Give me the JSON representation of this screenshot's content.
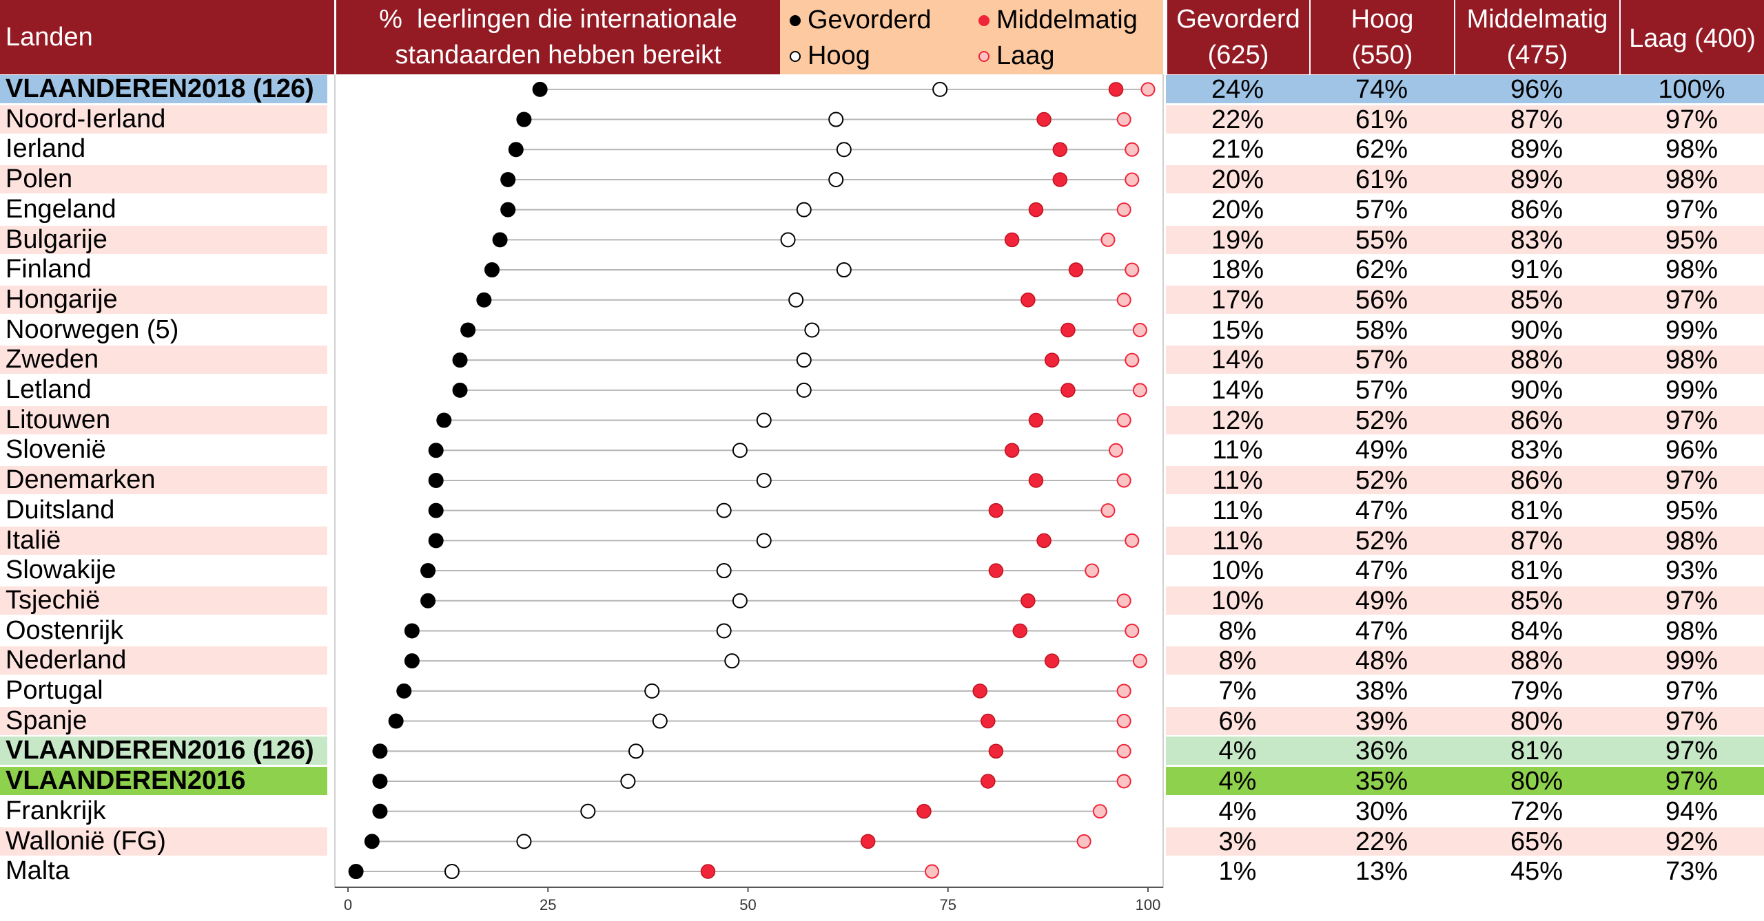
{
  "header": {
    "landen": "Landen",
    "title_line1": "%  leerlingen die internationale",
    "title_line2": "standaarden hebben bereikt"
  },
  "legend": {
    "gevorderd": "Gevorderd",
    "middelmatig": "Middelmatig",
    "hoog": "Hoog",
    "laag": "Laag"
  },
  "table_header": [
    {
      "name": "Gevorderd",
      "sub": "(625)"
    },
    {
      "name": "Hoog",
      "sub": "(550)"
    },
    {
      "name": "Middelmatig",
      "sub": "(475)"
    },
    {
      "name": "Laag (400)",
      "sub": ""
    }
  ],
  "colors": {
    "header_bg": "#941a24",
    "legend_bg": "#fdc9a1",
    "row_pink": "#fde2de",
    "row_blue": "#9fc4e6",
    "row_lightgreen": "#c6e8c6",
    "row_green": "#8ed14d",
    "gevorderd": "#000000",
    "hoog": "#ffffff",
    "middelmatig": "#f0253a",
    "laag": "#fbc3c3"
  },
  "rows": [
    {
      "land": "VLAANDEREN2018 (126)",
      "bold": true,
      "bg": "#9fc4e6",
      "g": "24%",
      "h": "74%",
      "m": "96%",
      "l": "100%"
    },
    {
      "land": "Noord-Ierland",
      "bold": false,
      "bg": "#fde2de",
      "g": "22%",
      "h": "61%",
      "m": "87%",
      "l": "97%"
    },
    {
      "land": "Ierland",
      "bold": false,
      "bg": "#ffffff",
      "g": "21%",
      "h": "62%",
      "m": "89%",
      "l": "98%"
    },
    {
      "land": "Polen",
      "bold": false,
      "bg": "#fde2de",
      "g": "20%",
      "h": "61%",
      "m": "89%",
      "l": "98%"
    },
    {
      "land": "Engeland",
      "bold": false,
      "bg": "#ffffff",
      "g": "20%",
      "h": "57%",
      "m": "86%",
      "l": "97%"
    },
    {
      "land": "Bulgarije",
      "bold": false,
      "bg": "#fde2de",
      "g": "19%",
      "h": "55%",
      "m": "83%",
      "l": "95%"
    },
    {
      "land": "Finland",
      "bold": false,
      "bg": "#ffffff",
      "g": "18%",
      "h": "62%",
      "m": "91%",
      "l": "98%"
    },
    {
      "land": "Hongarije",
      "bold": false,
      "bg": "#fde2de",
      "g": "17%",
      "h": "56%",
      "m": "85%",
      "l": "97%"
    },
    {
      "land": "Noorwegen (5)",
      "bold": false,
      "bg": "#ffffff",
      "g": "15%",
      "h": "58%",
      "m": "90%",
      "l": "99%"
    },
    {
      "land": "Zweden",
      "bold": false,
      "bg": "#fde2de",
      "g": "14%",
      "h": "57%",
      "m": "88%",
      "l": "98%"
    },
    {
      "land": "Letland",
      "bold": false,
      "bg": "#ffffff",
      "g": "14%",
      "h": "57%",
      "m": "90%",
      "l": "99%"
    },
    {
      "land": "Litouwen",
      "bold": false,
      "bg": "#fde2de",
      "g": "12%",
      "h": "52%",
      "m": "86%",
      "l": "97%"
    },
    {
      "land": "Slovenië",
      "bold": false,
      "bg": "#ffffff",
      "g": "11%",
      "h": "49%",
      "m": "83%",
      "l": "96%"
    },
    {
      "land": "Denemarken",
      "bold": false,
      "bg": "#fde2de",
      "g": "11%",
      "h": "52%",
      "m": "86%",
      "l": "97%"
    },
    {
      "land": "Duitsland",
      "bold": false,
      "bg": "#ffffff",
      "g": "11%",
      "h": "47%",
      "m": "81%",
      "l": "95%"
    },
    {
      "land": "Italië",
      "bold": false,
      "bg": "#fde2de",
      "g": "11%",
      "h": "52%",
      "m": "87%",
      "l": "98%"
    },
    {
      "land": "Slowakije",
      "bold": false,
      "bg": "#ffffff",
      "g": "10%",
      "h": "47%",
      "m": "81%",
      "l": "93%"
    },
    {
      "land": "Tsjechië",
      "bold": false,
      "bg": "#fde2de",
      "g": "10%",
      "h": "49%",
      "m": "85%",
      "l": "97%"
    },
    {
      "land": "Oostenrijk",
      "bold": false,
      "bg": "#ffffff",
      "g": "8%",
      "h": "47%",
      "m": "84%",
      "l": "98%"
    },
    {
      "land": "Nederland",
      "bold": false,
      "bg": "#fde2de",
      "g": "8%",
      "h": "48%",
      "m": "88%",
      "l": "99%"
    },
    {
      "land": "Portugal",
      "bold": false,
      "bg": "#ffffff",
      "g": "7%",
      "h": "38%",
      "m": "79%",
      "l": "97%"
    },
    {
      "land": "Spanje",
      "bold": false,
      "bg": "#fde2de",
      "g": "6%",
      "h": "39%",
      "m": "80%",
      "l": "97%"
    },
    {
      "land": "VLAANDEREN2016 (126)",
      "bold": true,
      "bg": "#c6e8c6",
      "g": "4%",
      "h": "36%",
      "m": "81%",
      "l": "97%"
    },
    {
      "land": "VLAANDEREN2016",
      "bold": true,
      "bg": "#8ed14d",
      "g": "4%",
      "h": "35%",
      "m": "80%",
      "l": "97%"
    },
    {
      "land": "Frankrijk",
      "bold": false,
      "bg": "#ffffff",
      "g": "4%",
      "h": "30%",
      "m": "72%",
      "l": "94%"
    },
    {
      "land": "Wallonië (FG)",
      "bold": false,
      "bg": "#fde2de",
      "g": "3%",
      "h": "22%",
      "m": "65%",
      "l": "92%"
    },
    {
      "land": "Malta",
      "bold": false,
      "bg": "#ffffff",
      "g": "1%",
      "h": "13%",
      "m": "45%",
      "l": "73%"
    }
  ],
  "chart_data": {
    "type": "scatter",
    "title": "%  leerlingen die internationale standaarden hebben bereikt",
    "xlim": [
      0,
      100
    ],
    "xticks": [
      0,
      25,
      50,
      75,
      100
    ],
    "categories": [
      "VLAANDEREN2018 (126)",
      "Noord-Ierland",
      "Ierland",
      "Polen",
      "Engeland",
      "Bulgarije",
      "Finland",
      "Hongarije",
      "Noorwegen (5)",
      "Zweden",
      "Letland",
      "Litouwen",
      "Slovenië",
      "Denemarken",
      "Duitsland",
      "Italië",
      "Slowakije",
      "Tsjechië",
      "Oostenrijk",
      "Nederland",
      "Portugal",
      "Spanje",
      "VLAANDEREN2016 (126)",
      "VLAANDEREN2016",
      "Frankrijk",
      "Wallonië (FG)",
      "Malta"
    ],
    "series": [
      {
        "name": "Gevorderd",
        "values": [
          24,
          22,
          21,
          20,
          20,
          19,
          18,
          17,
          15,
          14,
          14,
          12,
          11,
          11,
          11,
          11,
          10,
          10,
          8,
          8,
          7,
          6,
          4,
          4,
          4,
          3,
          1
        ]
      },
      {
        "name": "Hoog",
        "values": [
          74,
          61,
          62,
          61,
          57,
          55,
          62,
          56,
          58,
          57,
          57,
          52,
          49,
          52,
          47,
          52,
          47,
          49,
          47,
          48,
          38,
          39,
          36,
          35,
          30,
          22,
          13
        ]
      },
      {
        "name": "Middelmatig",
        "values": [
          96,
          87,
          89,
          89,
          86,
          83,
          91,
          85,
          90,
          88,
          90,
          86,
          83,
          86,
          81,
          87,
          81,
          85,
          84,
          88,
          79,
          80,
          81,
          80,
          72,
          65,
          45
        ]
      },
      {
        "name": "Laag",
        "values": [
          100,
          97,
          98,
          98,
          97,
          95,
          98,
          97,
          99,
          98,
          99,
          97,
          96,
          97,
          95,
          98,
          93,
          97,
          98,
          99,
          97,
          97,
          97,
          97,
          94,
          92,
          73
        ]
      }
    ],
    "grid": false
  }
}
